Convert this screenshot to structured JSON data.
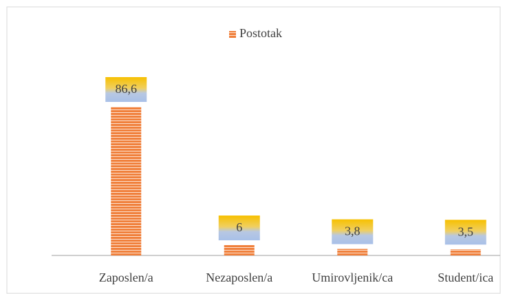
{
  "chart_data": {
    "type": "bar",
    "legend": "Postotak",
    "categories": [
      "Zaposlen/a",
      "Nezaposlen/a",
      "Umirovljenik/ca",
      "Student/ica"
    ],
    "values": [
      86.6,
      6,
      3.8,
      3.5
    ],
    "value_labels": [
      "86,6",
      "6",
      "3,8",
      "3,5"
    ],
    "color": "#f0803c"
  }
}
